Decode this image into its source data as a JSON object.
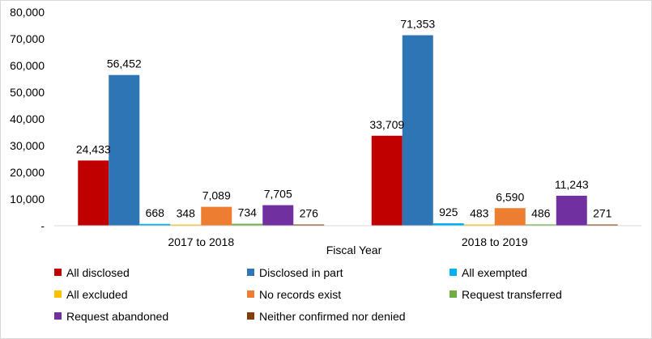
{
  "chart_data": {
    "type": "bar",
    "title": "",
    "xlabel": "Fiscal Year",
    "ylabel": "",
    "ylim": [
      0,
      80000
    ],
    "yticks": [
      0,
      10000,
      20000,
      30000,
      40000,
      50000,
      60000,
      70000,
      80000
    ],
    "ytick_labels": [
      "-",
      "10,000",
      "20,000",
      "30,000",
      "40,000",
      "50,000",
      "60,000",
      "70,000",
      "80,000"
    ],
    "categories": [
      "2017 to 2018",
      "2018 to 2019"
    ],
    "series": [
      {
        "name": "All disclosed",
        "color": "#c00000",
        "values": [
          24433,
          33709
        ],
        "labels": [
          "24,433",
          "33,709"
        ]
      },
      {
        "name": "Disclosed in part",
        "color": "#2e75b6",
        "values": [
          56452,
          71353
        ],
        "labels": [
          "56,452",
          "71,353"
        ]
      },
      {
        "name": "All exempted",
        "color": "#00b0f0",
        "values": [
          668,
          925
        ],
        "labels": [
          "668",
          "925"
        ]
      },
      {
        "name": "All excluded",
        "color": "#ffc000",
        "values": [
          348,
          483
        ],
        "labels": [
          "348",
          "483"
        ]
      },
      {
        "name": "No records exist",
        "color": "#ed7d31",
        "values": [
          7089,
          6590
        ],
        "labels": [
          "7,089",
          "6,590"
        ]
      },
      {
        "name": "Request transferred",
        "color": "#70ad47",
        "values": [
          734,
          486
        ],
        "labels": [
          "734",
          "486"
        ]
      },
      {
        "name": "Request abandoned",
        "color": "#7030a0",
        "values": [
          7705,
          11243
        ],
        "labels": [
          "7,705",
          "11,243"
        ]
      },
      {
        "name": "Neither confirmed nor denied",
        "color": "#843c0c",
        "values": [
          276,
          271
        ],
        "labels": [
          "276",
          "271"
        ]
      }
    ],
    "legend_position": "bottom",
    "grid": false
  }
}
